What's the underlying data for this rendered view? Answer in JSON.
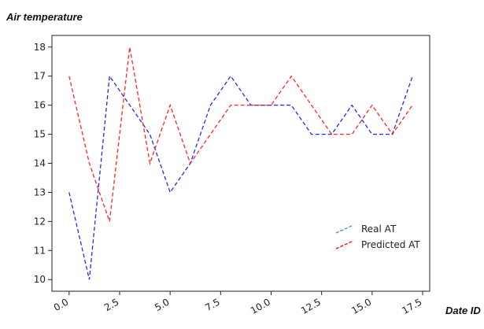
{
  "chart_data": {
    "type": "line",
    "title": "",
    "ylabel": "Air temperature",
    "xlabel": "Date ID",
    "xlim": [
      -0.85,
      17.85
    ],
    "ylim": [
      9.6,
      18.4
    ],
    "xticks": [
      0.0,
      2.5,
      5.0,
      7.5,
      10.0,
      12.5,
      15.0,
      17.5
    ],
    "xtick_labels": [
      "0.0",
      "2.5",
      "5.0",
      "7.5",
      "10.0",
      "12.5",
      "15.0",
      "17.5"
    ],
    "yticks": [
      10,
      11,
      12,
      13,
      14,
      15,
      16,
      17,
      18
    ],
    "ytick_labels": [
      "10",
      "11",
      "12",
      "13",
      "14",
      "15",
      "16",
      "17",
      "18"
    ],
    "grid": false,
    "legend_position": "lower-right",
    "x": [
      0,
      1,
      2,
      3,
      4,
      5,
      6,
      7,
      8,
      9,
      10,
      11,
      12,
      13,
      14,
      15,
      16,
      17
    ],
    "series": [
      {
        "name": "Real AT",
        "color": "#0000ff",
        "legend_color": "#3a8fd6",
        "linestyle": "dashed",
        "values": [
          13,
          10,
          17,
          16,
          15,
          13,
          14,
          16,
          17,
          16,
          16,
          16,
          15,
          15,
          16,
          15,
          15,
          17
        ]
      },
      {
        "name": "Predicted AT",
        "color": "#ff0000",
        "legend_color": "#ff0000",
        "linestyle": "dashed",
        "values": [
          17,
          14,
          12,
          18,
          14,
          16,
          14,
          15,
          16,
          16,
          16,
          17,
          16,
          15,
          15,
          16,
          15,
          16
        ]
      }
    ]
  }
}
